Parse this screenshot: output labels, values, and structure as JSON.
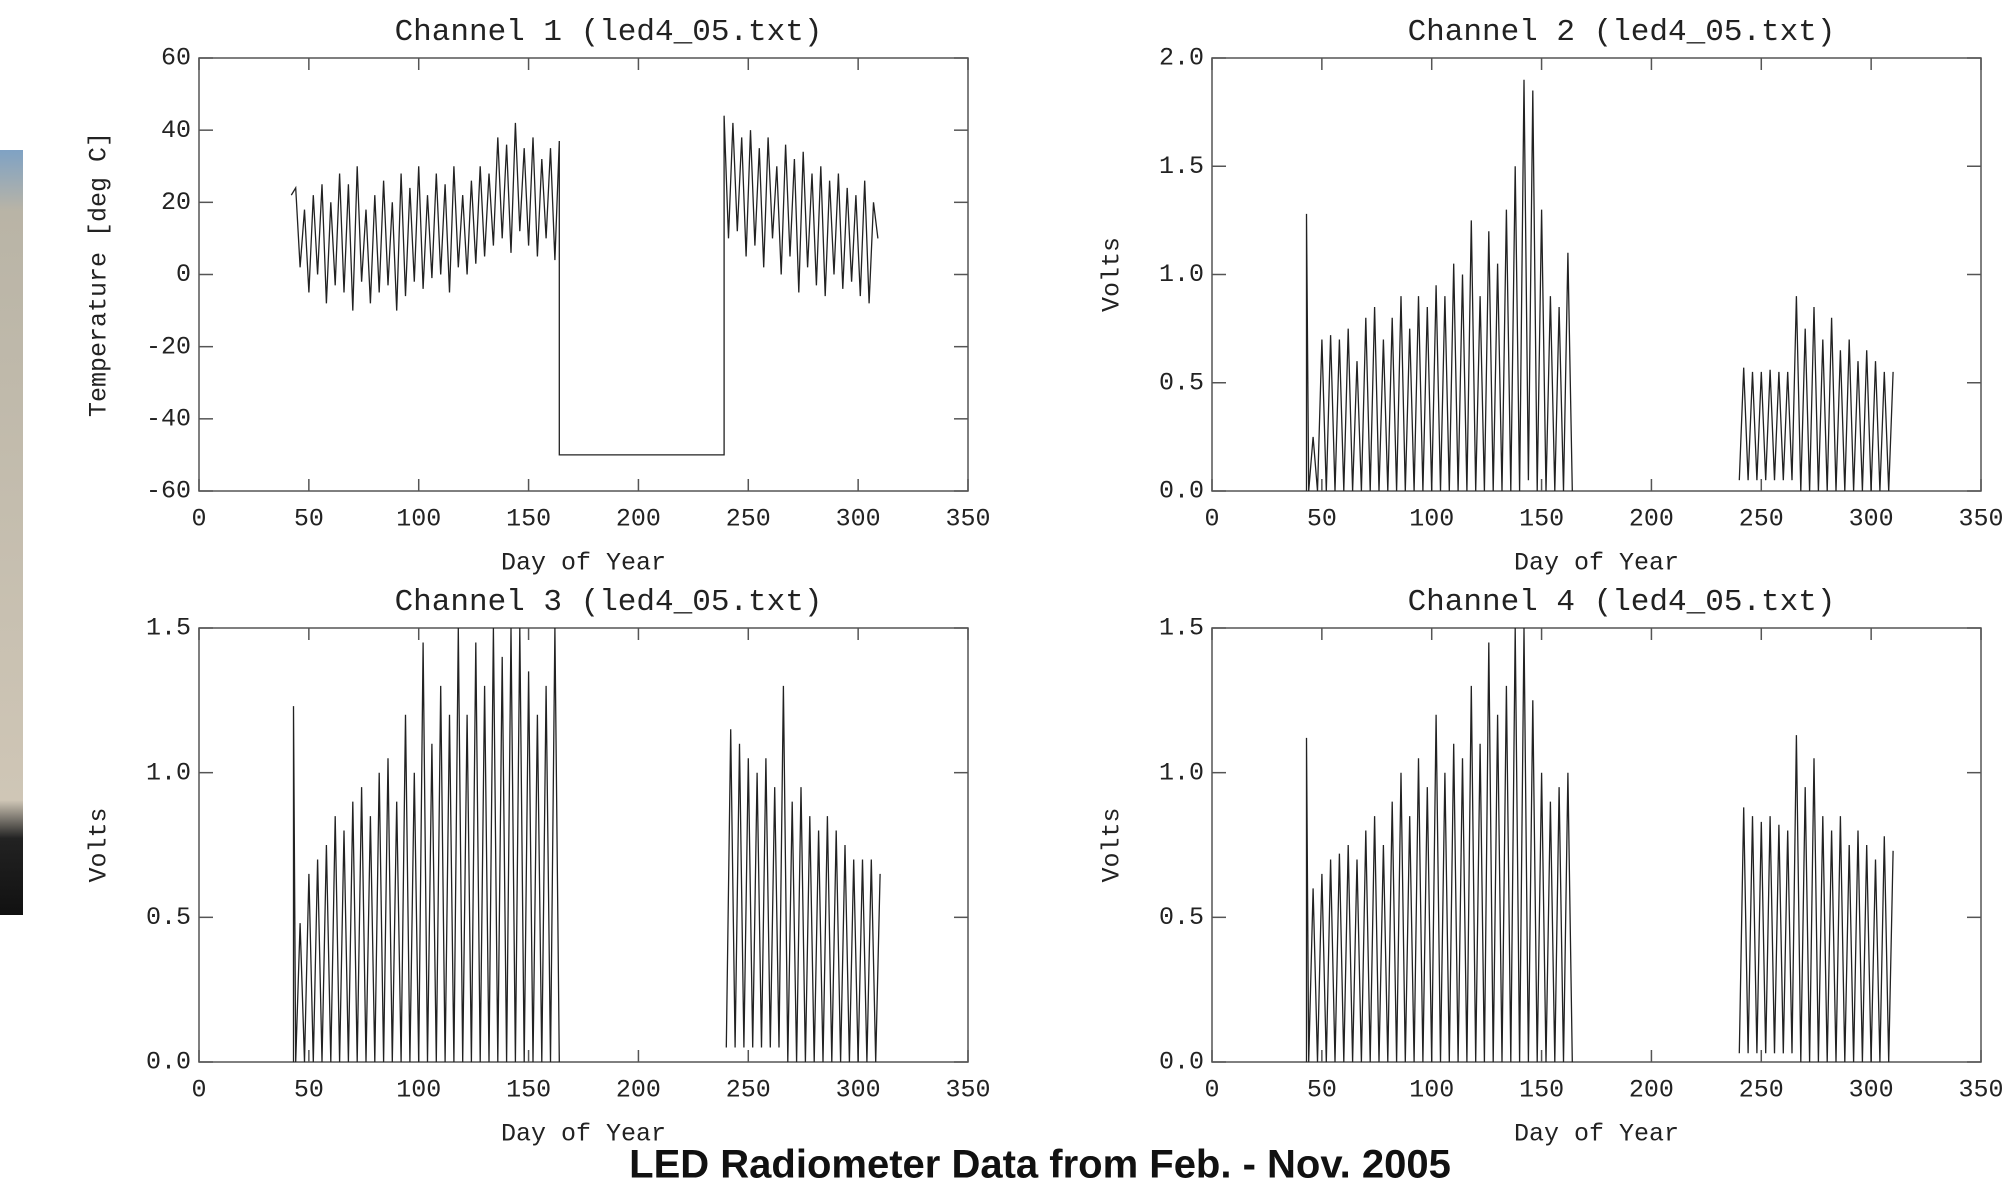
{
  "caption": "LED Radiometer Data from Feb. - Nov. 2005",
  "chart_data": [
    {
      "type": "line",
      "title": "Channel 1 (led4_05.txt)",
      "xlabel": "Day of Year",
      "ylabel": "Temperature [deg C]",
      "color": "#222222",
      "xlim": [
        0,
        350
      ],
      "xticks": [
        0,
        50,
        100,
        150,
        200,
        250,
        300,
        350
      ],
      "ylim": [
        -60,
        60
      ],
      "yticks": [
        -60,
        -40,
        -20,
        0,
        20,
        40,
        60
      ],
      "x": [
        42,
        44,
        46,
        48,
        50,
        52,
        54,
        56,
        58,
        60,
        62,
        64,
        66,
        68,
        70,
        72,
        74,
        76,
        78,
        80,
        82,
        84,
        86,
        88,
        90,
        92,
        94,
        96,
        98,
        100,
        102,
        104,
        106,
        108,
        110,
        112,
        114,
        116,
        118,
        120,
        122,
        124,
        126,
        128,
        130,
        132,
        134,
        136,
        138,
        140,
        142,
        144,
        146,
        148,
        150,
        152,
        154,
        156,
        158,
        160,
        162,
        164,
        164,
        239,
        239,
        241,
        243,
        245,
        247,
        249,
        251,
        253,
        255,
        257,
        259,
        261,
        263,
        265,
        267,
        269,
        271,
        273,
        275,
        277,
        279,
        281,
        283,
        285,
        287,
        289,
        291,
        293,
        295,
        297,
        299,
        301,
        303,
        305,
        307,
        309
      ],
      "values": [
        22,
        24,
        2,
        18,
        -5,
        22,
        0,
        25,
        -8,
        20,
        -3,
        28,
        -5,
        25,
        -10,
        30,
        -2,
        18,
        -8,
        22,
        -5,
        26,
        -3,
        20,
        -10,
        28,
        -6,
        24,
        -2,
        30,
        -4,
        22,
        -1,
        28,
        0,
        25,
        -5,
        30,
        2,
        22,
        0,
        26,
        3,
        30,
        5,
        28,
        8,
        38,
        10,
        36,
        6,
        42,
        12,
        35,
        8,
        38,
        5,
        32,
        10,
        35,
        4,
        37,
        -50,
        -50,
        44,
        10,
        42,
        12,
        38,
        5,
        40,
        8,
        35,
        2,
        38,
        10,
        30,
        0,
        36,
        5,
        32,
        -5,
        34,
        2,
        28,
        -3,
        30,
        -6,
        26,
        0,
        28,
        -4,
        24,
        -2,
        22,
        -6,
        26,
        -8,
        20,
        10
      ]
    },
    {
      "type": "line",
      "title": "Channel 2 (led4_05.txt)",
      "xlabel": "Day of Year",
      "ylabel": "Volts",
      "color": "#222222",
      "xlim": [
        0,
        350
      ],
      "xticks": [
        0,
        50,
        100,
        150,
        200,
        250,
        300,
        350
      ],
      "ylim": [
        0,
        2
      ],
      "yticks": [
        {
          "value": 0,
          "label": "0.0"
        },
        0.5,
        {
          "value": 1,
          "label": "1.0"
        },
        1.5,
        {
          "value": 2,
          "label": "2.0"
        }
      ],
      "x": [
        43,
        43,
        44,
        46,
        48,
        50,
        52,
        54,
        56,
        58,
        60,
        62,
        64,
        66,
        68,
        70,
        72,
        74,
        76,
        78,
        80,
        82,
        84,
        86,
        88,
        90,
        92,
        94,
        96,
        98,
        100,
        102,
        104,
        106,
        108,
        110,
        112,
        114,
        116,
        118,
        120,
        122,
        124,
        126,
        128,
        130,
        132,
        134,
        136,
        138,
        140,
        142,
        144,
        146,
        148,
        150,
        152,
        154,
        156,
        158,
        160,
        162,
        164,
        200,
        240,
        242,
        244,
        246,
        248,
        250,
        252,
        254,
        256,
        258,
        260,
        262,
        264,
        266,
        268,
        270,
        272,
        274,
        276,
        278,
        280,
        282,
        284,
        286,
        288,
        290,
        292,
        294,
        296,
        298,
        300,
        302,
        304,
        306,
        308,
        310
      ],
      "values": [
        0,
        1.28,
        0,
        0.25,
        0,
        0.7,
        0,
        0.72,
        0,
        0.7,
        0,
        0.75,
        0,
        0.6,
        0,
        0.8,
        0,
        0.85,
        0,
        0.7,
        0,
        0.8,
        0,
        0.9,
        0,
        0.75,
        0,
        0.9,
        0,
        0.85,
        0,
        0.95,
        0,
        0.9,
        0,
        1.05,
        0,
        1.0,
        0,
        1.25,
        0,
        0.9,
        0,
        1.2,
        0,
        1.05,
        0,
        1.3,
        0,
        1.5,
        0,
        1.9,
        0.05,
        1.85,
        0,
        1.3,
        0,
        0.9,
        0,
        0.85,
        0,
        1.1,
        0,
        null,
        0.05,
        0.57,
        0.05,
        0.55,
        0.05,
        0.55,
        0.05,
        0.56,
        0.05,
        0.55,
        0.05,
        0.55,
        0.05,
        0.9,
        0,
        0.75,
        0,
        0.85,
        0,
        0.7,
        0,
        0.8,
        0,
        0.65,
        0,
        0.7,
        0,
        0.6,
        0,
        0.65,
        0,
        0.6,
        0,
        0.55,
        0,
        0.55
      ]
    },
    {
      "type": "line",
      "title": "Channel 3 (led4_05.txt)",
      "xlabel": "Day of Year",
      "ylabel": "Volts",
      "color": "#222222",
      "xlim": [
        0,
        350
      ],
      "xticks": [
        0,
        50,
        100,
        150,
        200,
        250,
        300,
        350
      ],
      "ylim": [
        0,
        1.5
      ],
      "yticks": [
        {
          "value": 0,
          "label": "0.0"
        },
        0.5,
        {
          "value": 1,
          "label": "1.0"
        },
        1.5
      ],
      "x": [
        43,
        43,
        44,
        46,
        48,
        50,
        52,
        54,
        56,
        58,
        60,
        62,
        64,
        66,
        68,
        70,
        72,
        74,
        76,
        78,
        80,
        82,
        84,
        86,
        88,
        90,
        92,
        94,
        96,
        98,
        100,
        102,
        104,
        106,
        108,
        110,
        112,
        114,
        116,
        118,
        120,
        122,
        124,
        126,
        128,
        130,
        132,
        134,
        136,
        138,
        140,
        142,
        144,
        146,
        148,
        150,
        152,
        154,
        156,
        158,
        160,
        162,
        164,
        200,
        240,
        242,
        244,
        246,
        248,
        250,
        252,
        254,
        256,
        258,
        260,
        262,
        264,
        266,
        268,
        270,
        272,
        274,
        276,
        278,
        280,
        282,
        284,
        286,
        288,
        290,
        292,
        294,
        296,
        298,
        300,
        302,
        304,
        306,
        308,
        310
      ],
      "values": [
        0,
        1.23,
        0,
        0.48,
        0,
        0.65,
        0,
        0.7,
        0,
        0.75,
        0,
        0.85,
        0,
        0.8,
        0,
        0.9,
        0,
        0.95,
        0,
        0.85,
        0,
        1.0,
        0,
        1.05,
        0,
        0.9,
        0,
        1.2,
        0,
        1.0,
        0,
        1.45,
        0,
        1.1,
        0,
        1.3,
        0,
        1.2,
        0,
        1.5,
        0,
        1.2,
        0,
        1.45,
        0,
        1.3,
        0,
        1.5,
        0,
        1.4,
        0,
        1.5,
        0,
        1.5,
        0,
        1.35,
        0,
        1.2,
        0,
        1.3,
        0,
        1.5,
        0,
        null,
        0.05,
        1.15,
        0.05,
        1.1,
        0.05,
        1.05,
        0.05,
        1.0,
        0.05,
        1.05,
        0.05,
        0.95,
        0.05,
        1.3,
        0,
        0.9,
        0,
        0.95,
        0,
        0.85,
        0,
        0.8,
        0,
        0.85,
        0,
        0.8,
        0,
        0.75,
        0,
        0.7,
        0,
        0.7,
        0,
        0.7,
        0,
        0.65
      ]
    },
    {
      "type": "line",
      "title": "Channel 4 (led4_05.txt)",
      "xlabel": "Day of Year",
      "ylabel": "Volts",
      "color": "#222222",
      "xlim": [
        0,
        350
      ],
      "xticks": [
        0,
        50,
        100,
        150,
        200,
        250,
        300,
        350
      ],
      "ylim": [
        0,
        1.5
      ],
      "yticks": [
        {
          "value": 0,
          "label": "0.0"
        },
        0.5,
        {
          "value": 1,
          "label": "1.0"
        },
        1.5
      ],
      "x": [
        43,
        43,
        44,
        46,
        48,
        50,
        52,
        54,
        56,
        58,
        60,
        62,
        64,
        66,
        68,
        70,
        72,
        74,
        76,
        78,
        80,
        82,
        84,
        86,
        88,
        90,
        92,
        94,
        96,
        98,
        100,
        102,
        104,
        106,
        108,
        110,
        112,
        114,
        116,
        118,
        120,
        122,
        124,
        126,
        128,
        130,
        132,
        134,
        136,
        138,
        140,
        142,
        144,
        146,
        148,
        150,
        152,
        154,
        156,
        158,
        160,
        162,
        164,
        200,
        240,
        242,
        244,
        246,
        248,
        250,
        252,
        254,
        256,
        258,
        260,
        262,
        264,
        266,
        268,
        270,
        272,
        274,
        276,
        278,
        280,
        282,
        284,
        286,
        288,
        290,
        292,
        294,
        296,
        298,
        300,
        302,
        304,
        306,
        308,
        310
      ],
      "values": [
        0,
        1.12,
        0,
        0.6,
        0,
        0.65,
        0,
        0.7,
        0,
        0.72,
        0,
        0.75,
        0,
        0.7,
        0,
        0.8,
        0,
        0.85,
        0,
        0.75,
        0,
        0.9,
        0,
        1.0,
        0,
        0.85,
        0,
        1.05,
        0,
        0.95,
        0,
        1.2,
        0,
        1.0,
        0,
        1.1,
        0,
        1.05,
        0,
        1.3,
        0,
        1.1,
        0,
        1.45,
        0,
        1.2,
        0,
        1.3,
        0,
        1.5,
        0,
        1.5,
        0,
        1.25,
        0,
        1.0,
        0,
        0.9,
        0,
        0.95,
        0,
        1.0,
        0,
        null,
        0.03,
        0.88,
        0.03,
        0.85,
        0.03,
        0.83,
        0.03,
        0.85,
        0.03,
        0.82,
        0.03,
        0.8,
        0.03,
        1.13,
        0,
        0.95,
        0,
        1.05,
        0,
        0.85,
        0,
        0.8,
        0,
        0.85,
        0,
        0.75,
        0,
        0.8,
        0,
        0.75,
        0,
        0.7,
        0,
        0.78,
        0,
        0.73
      ]
    }
  ]
}
